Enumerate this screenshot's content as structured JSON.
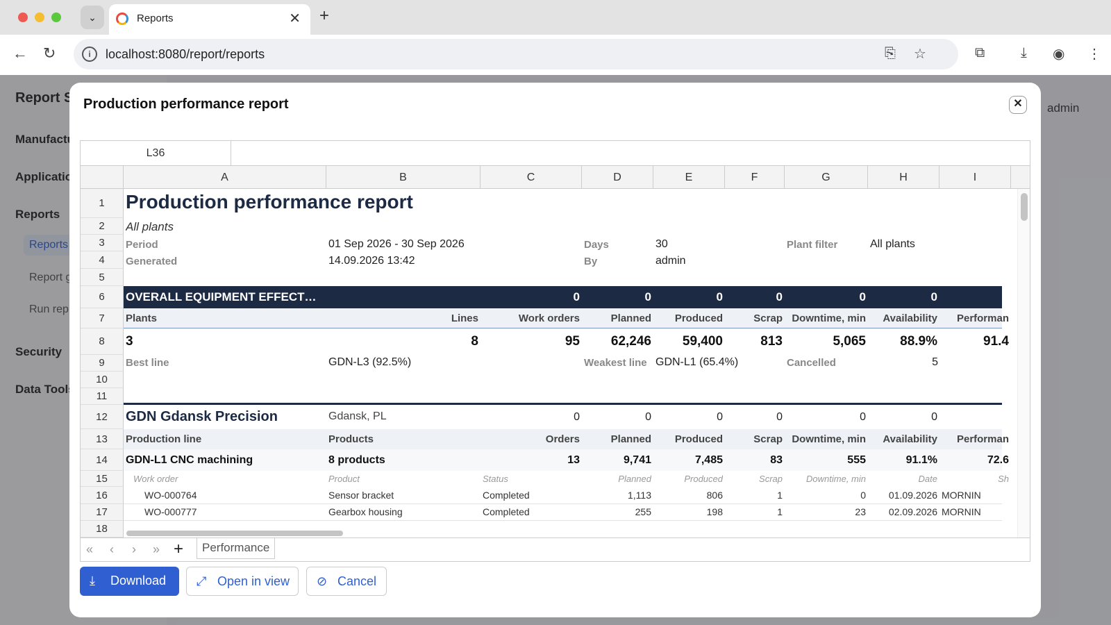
{
  "browser": {
    "tab_title": "Reports",
    "url": "localhost:8080/report/reports"
  },
  "app": {
    "title": "Report S",
    "user": "admin",
    "sidebar": [
      {
        "label": "Manufactu"
      },
      {
        "label": "Applicatio"
      },
      {
        "label": "Reports"
      },
      {
        "label": "Security"
      },
      {
        "label": "Data Tools"
      }
    ],
    "subitems": [
      {
        "label": "Reports"
      },
      {
        "label": "Report g"
      },
      {
        "label": "Run rep"
      }
    ]
  },
  "modal": {
    "title": "Production performance report",
    "close_icon": "close-icon",
    "cell_ref": "L36",
    "columns": [
      "A",
      "B",
      "C",
      "D",
      "E",
      "F",
      "G",
      "H",
      "I"
    ],
    "rows": [
      "1",
      "2",
      "3",
      "4",
      "5",
      "6",
      "7",
      "8",
      "9",
      "10",
      "11",
      "12",
      "13",
      "14",
      "15",
      "16",
      "17",
      "18"
    ],
    "subtitle": "All plants",
    "meta": {
      "period_label": "Period",
      "period": "01 Sep 2026 - 30 Sep 2026",
      "days_label": "Days",
      "days": "30",
      "filter_label": "Plant filter",
      "filter": "All plants",
      "generated_label": "Generated",
      "generated": "14.09.2026 13:42",
      "by_label": "By",
      "by": "admin"
    },
    "oee": {
      "label": "OVERALL EQUIPMENT EFFECT…",
      "zeros": [
        "0",
        "0",
        "0",
        "0",
        "0",
        "0",
        "0"
      ]
    },
    "summary_headers": [
      "Plants",
      "Lines",
      "Work orders",
      "Planned",
      "Produced",
      "Scrap",
      "Downtime, min",
      "Availability",
      "Performan"
    ],
    "summary_values": [
      "3",
      "8",
      "95",
      "62,246",
      "59,400",
      "813",
      "5,065",
      "88.9%",
      "91.4"
    ],
    "best": {
      "label": "Best line",
      "value": "GDN-L3 (92.5%)",
      "weak_label": "Weakest line",
      "weak_value": "GDN-L1 (65.4%)",
      "cancel_label": "Cancelled",
      "cancel_value": "5"
    },
    "plant": {
      "name": "GDN Gdansk Precision",
      "location": "Gdansk, PL",
      "zeros": [
        "0",
        "0",
        "0",
        "0",
        "0",
        "0"
      ]
    },
    "line_headers": [
      "Production line",
      "Products",
      "Orders",
      "Planned",
      "Produced",
      "Scrap",
      "Downtime, min",
      "Availability",
      "Performan"
    ],
    "line": [
      "GDN-L1 CNC machining",
      "8 products",
      "13",
      "9,741",
      "7,485",
      "83",
      "555",
      "91.1%",
      "72.6"
    ],
    "wo_headers": [
      "Work order",
      "Product",
      "Status",
      "Planned",
      "Produced",
      "Scrap",
      "Downtime, min",
      "Date",
      "Sh"
    ],
    "work_orders": [
      [
        "WO-000764",
        "Sensor bracket",
        "Completed",
        "1,113",
        "806",
        "1",
        "0",
        "01.09.2026",
        "MORNIN"
      ],
      [
        "WO-000777",
        "Gearbox housing",
        "Completed",
        "255",
        "198",
        "1",
        "23",
        "02.09.2026",
        "MORNIN"
      ]
    ],
    "sheet_tab": "Performance",
    "buttons": {
      "download": "Download",
      "open": "Open in view",
      "cancel": "Cancel"
    }
  }
}
